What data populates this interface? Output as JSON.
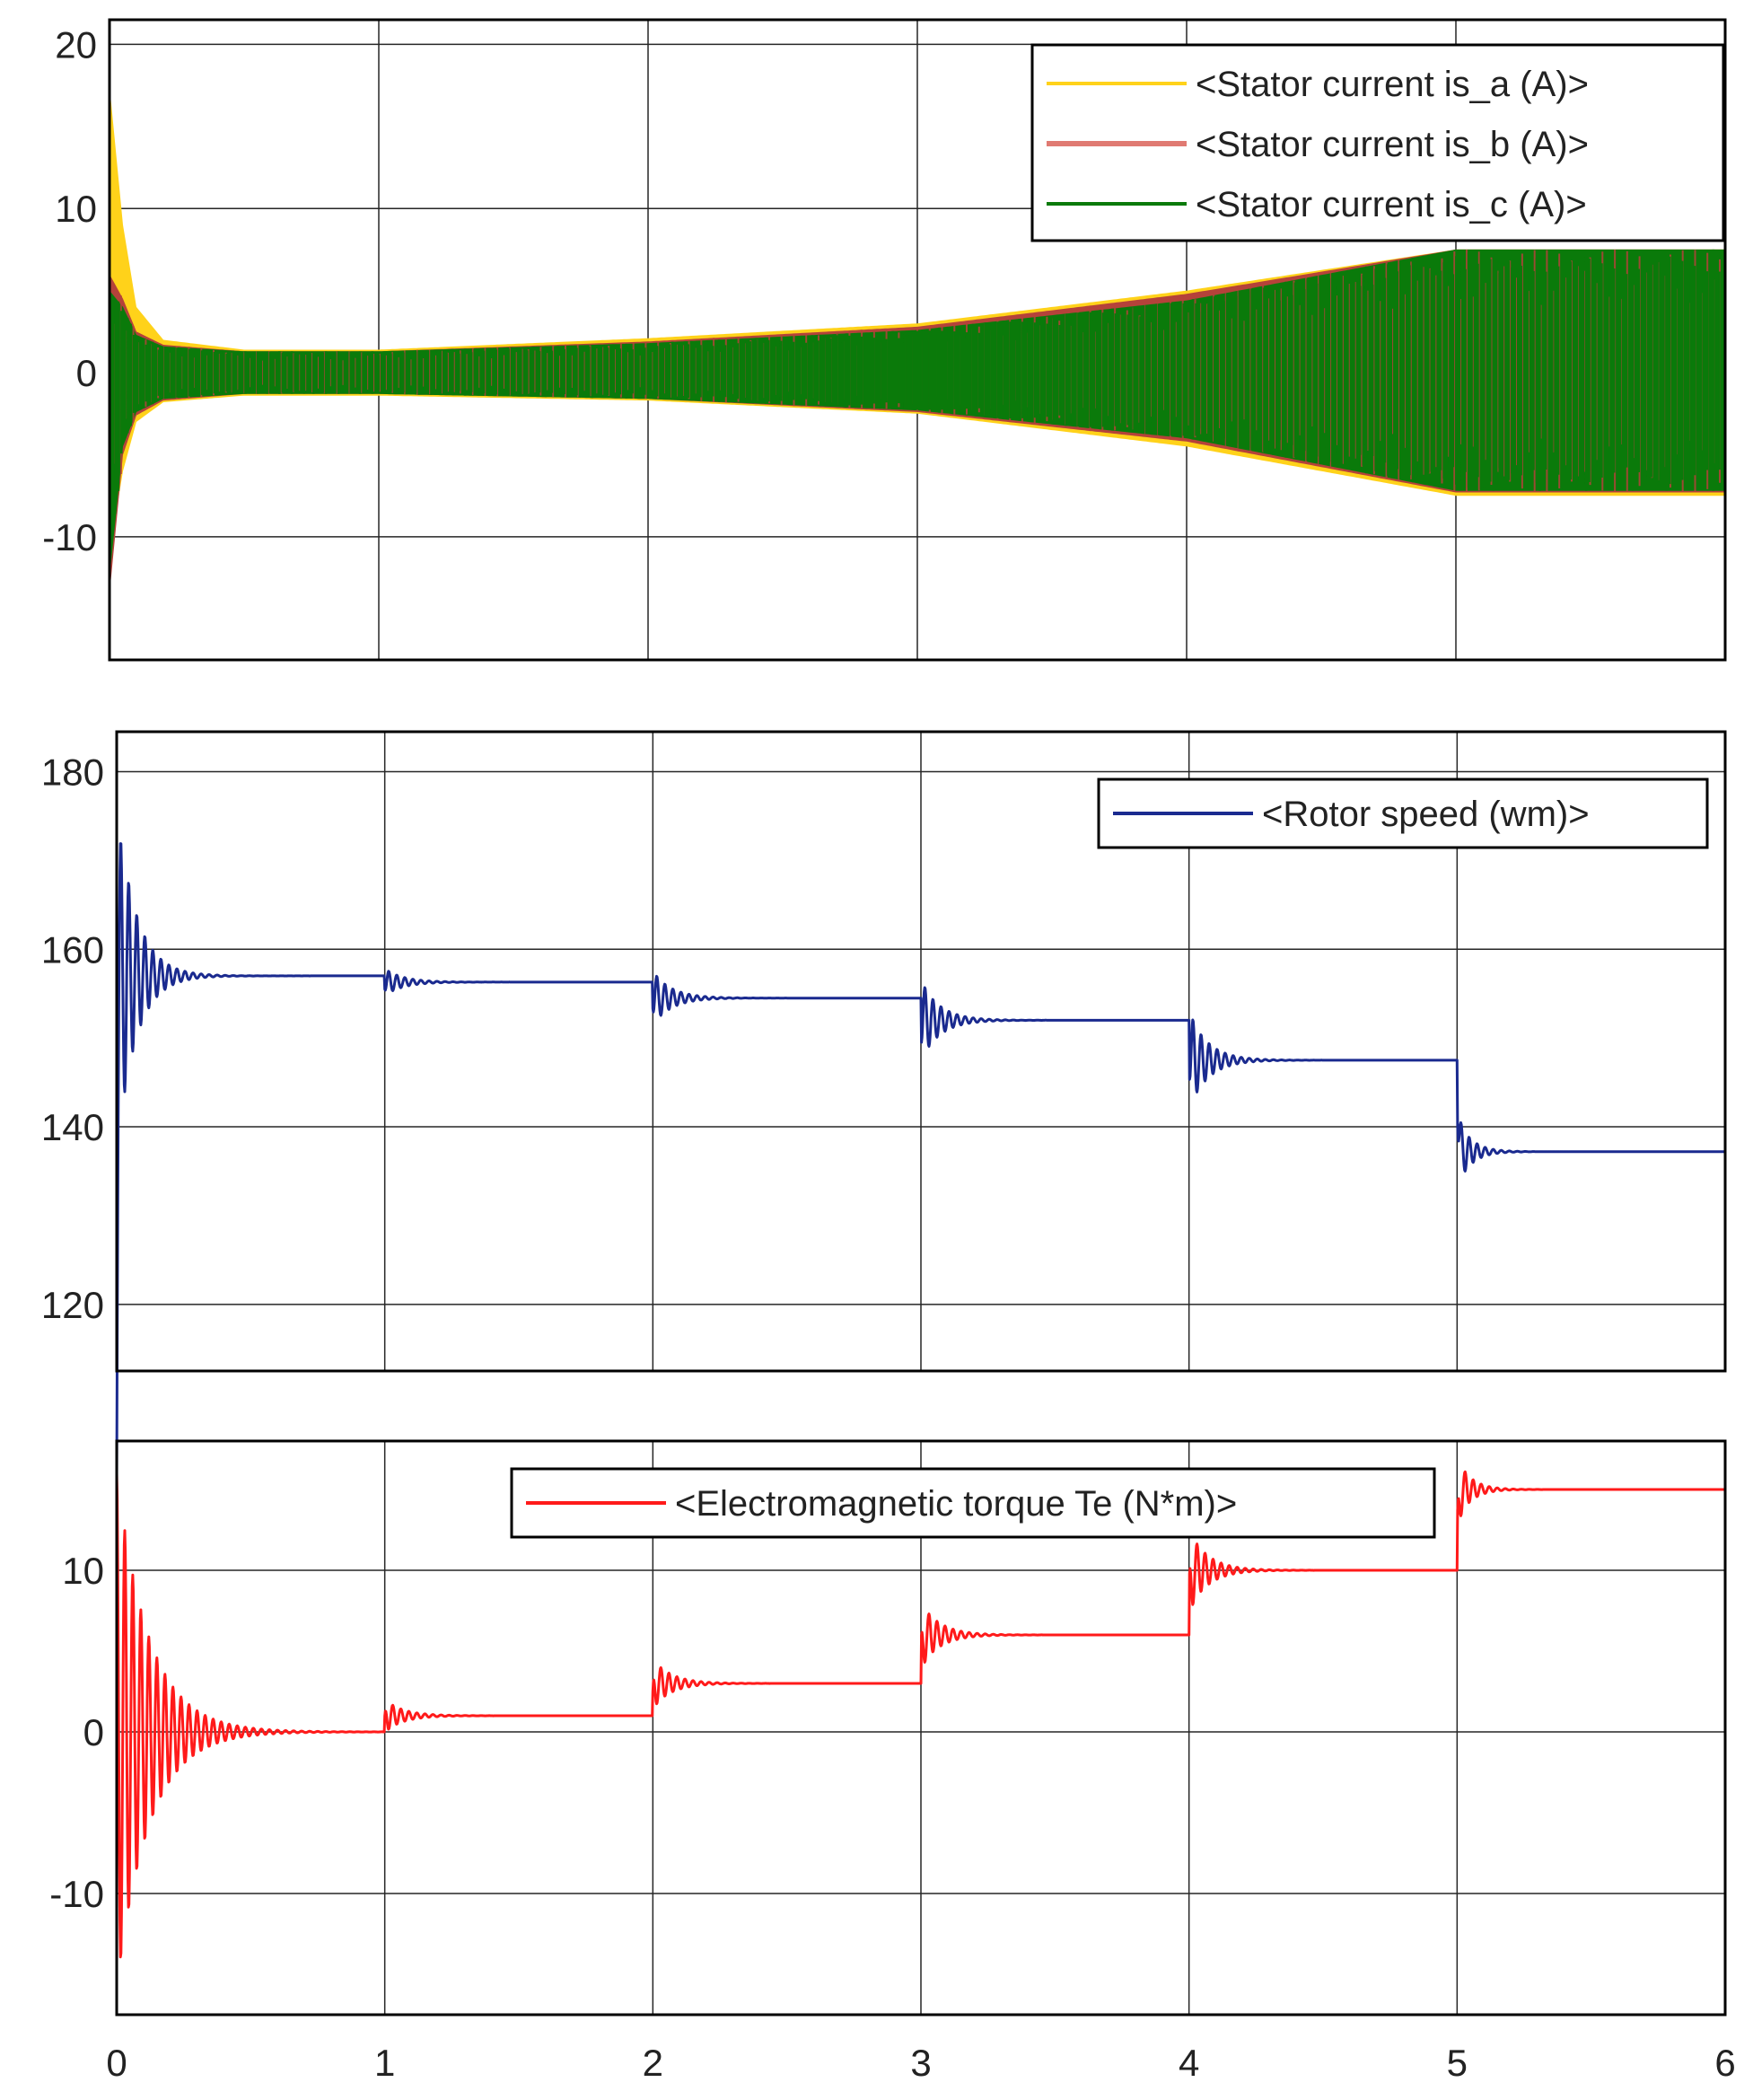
{
  "chart_data": [
    {
      "type": "line",
      "x_ticks": [
        "0",
        "1",
        "2",
        "3",
        "4",
        "5",
        "6"
      ],
      "y_ticks": [
        "20",
        "10",
        "0",
        "-10"
      ],
      "y_tick_values": [
        20,
        10,
        0,
        -10
      ],
      "xlim": [
        0,
        6
      ],
      "ylim": [
        -17.5,
        21.5
      ],
      "grid": true,
      "legend_placement": "top-right",
      "colors": {
        "is_a": "#ffd21a",
        "is_b": "#b5423a",
        "is_c": "#0a7a0a"
      },
      "series": [
        {
          "name": "<Stator current is_a (A)>",
          "color": "#ffd21a",
          "envelope": {
            "x": [
              0,
              0.05,
              0.1,
              0.2,
              0.5,
              1,
              2,
              3,
              4,
              5,
              6
            ],
            "upper": [
              17.5,
              9,
              4,
              2,
              1.4,
              1.4,
              2.1,
              3,
              5,
              7.5,
              7.5
            ],
            "lower": [
              -11,
              -6,
              -3,
              -1.8,
              -1.4,
              -1.4,
              -1.7,
              -2.5,
              -4.5,
              -7.5,
              -7.5
            ]
          }
        },
        {
          "name": "<Stator current is_b (A)>",
          "color": "#b5423a",
          "envelope": {
            "x": [
              0,
              0.05,
              0.1,
              0.2,
              0.5,
              1,
              2,
              3,
              4,
              5,
              6
            ],
            "upper": [
              6,
              4.5,
              2.5,
              1.7,
              1.3,
              1.3,
              1.9,
              2.8,
              4.8,
              7.5,
              7.5
            ],
            "lower": [
              -13.5,
              -5,
              -2.6,
              -1.7,
              -1.3,
              -1.3,
              -1.6,
              -2.4,
              -4.2,
              -7.3,
              -7.3
            ]
          }
        },
        {
          "name": "<Stator current is_c (A)>",
          "color": "#0a7a0a",
          "envelope": {
            "x": [
              0,
              0.05,
              0.1,
              0.2,
              0.5,
              1,
              2,
              3,
              4,
              5,
              6
            ],
            "upper": [
              5,
              4,
              2.3,
              1.6,
              1.3,
              1.3,
              1.8,
              2.6,
              4.4,
              7.5,
              7.5
            ],
            "lower": [
              -12.5,
              -4.5,
              -2.4,
              -1.6,
              -1.3,
              -1.3,
              -1.6,
              -2.3,
              -4,
              -7.2,
              -7.2
            ]
          }
        }
      ]
    },
    {
      "type": "line",
      "x_ticks": [
        "0",
        "1",
        "2",
        "3",
        "4",
        "5",
        "6"
      ],
      "y_ticks": [
        "180",
        "160",
        "140",
        "120"
      ],
      "y_tick_values": [
        180,
        160,
        140,
        120
      ],
      "xlim": [
        0,
        6
      ],
      "ylim": [
        112.5,
        184.5
      ],
      "grid": true,
      "legend_placement": "top-right",
      "color": "#1a2a8f",
      "series": [
        {
          "name": "<Rotor speed (wm)>",
          "color": "#1a2a8f",
          "steps": [
            {
              "t": 0,
              "from": 120,
              "to": 157,
              "overshoot": 20,
              "decay": 0.07,
              "period": 0.03
            },
            {
              "t": 1,
              "from": 157,
              "to": 156.3,
              "overshoot": 1.5,
              "decay": 0.07,
              "period": 0.03
            },
            {
              "t": 2,
              "from": 156.3,
              "to": 154.5,
              "overshoot": 3,
              "decay": 0.07,
              "period": 0.03
            },
            {
              "t": 3,
              "from": 154.5,
              "to": 152,
              "overshoot": 4.5,
              "decay": 0.07,
              "period": 0.03
            },
            {
              "t": 4,
              "from": 152,
              "to": 147.5,
              "overshoot": 5.5,
              "decay": 0.07,
              "period": 0.03
            },
            {
              "t": 5,
              "from": 147.5,
              "to": 137.2,
              "overshoot": 4,
              "decay": 0.05,
              "period": 0.03
            }
          ]
        }
      ]
    },
    {
      "type": "line",
      "x_ticks": [
        "0",
        "1",
        "2",
        "3",
        "4",
        "5",
        "6"
      ],
      "y_ticks": [
        "10",
        "0",
        "-10"
      ],
      "y_tick_values": [
        10,
        0,
        -10
      ],
      "xlim": [
        0,
        6
      ],
      "ylim": [
        -17.5,
        18
      ],
      "grid": true,
      "legend_placement": "top-center",
      "color": "#ff1a1a",
      "series": [
        {
          "name": "<Electromagnetic torque Te (N*m)>",
          "color": "#ff1a1a",
          "steps": [
            {
              "t": 0,
              "from": 0,
              "to": 0,
              "overshoot": 16,
              "decay": 0.12,
              "period": 0.03
            },
            {
              "t": 1,
              "from": 0,
              "to": 1,
              "overshoot": 1,
              "decay": 0.07,
              "period": 0.03
            },
            {
              "t": 2,
              "from": 1,
              "to": 3,
              "overshoot": 1.5,
              "decay": 0.07,
              "period": 0.03
            },
            {
              "t": 3,
              "from": 3,
              "to": 6,
              "overshoot": 2,
              "decay": 0.07,
              "period": 0.03
            },
            {
              "t": 4,
              "from": 6,
              "to": 10,
              "overshoot": 2.5,
              "decay": 0.07,
              "period": 0.03
            },
            {
              "t": 5,
              "from": 10,
              "to": 15,
              "overshoot": 2,
              "decay": 0.05,
              "period": 0.03
            }
          ]
        }
      ]
    }
  ]
}
